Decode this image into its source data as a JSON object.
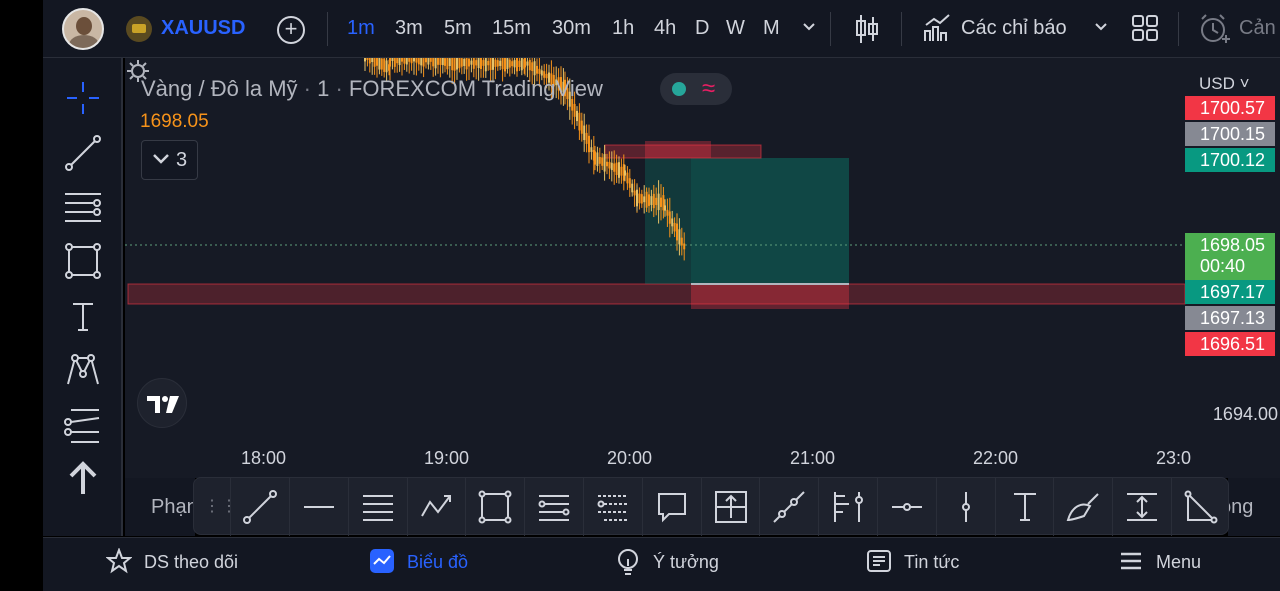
{
  "header": {
    "symbol": "XAUUSD",
    "add_symbol_label": "+",
    "timeframes": [
      "1m",
      "3m",
      "5m",
      "15m",
      "30m",
      "1h",
      "4h",
      "D",
      "W",
      "M"
    ],
    "active_timeframe": "1m",
    "indicators_label": "Các chỉ báo",
    "alert_label": "Cản"
  },
  "chart": {
    "title": {
      "name": "Vàng / Đô la Mỹ",
      "interval": "1",
      "exchange": "FOREXCOM",
      "provider": "TradingView"
    },
    "last_price": "1698.05",
    "collapsed_count": "3",
    "currency": "USD",
    "price_labels": {
      "p1": "1700.57",
      "p2": "1700.15",
      "p3": "1700.12",
      "current": "1698.05",
      "countdown": "00:40",
      "p5": "1697.17",
      "p6": "1697.13",
      "p7": "1696.51",
      "axis_1694": "1694.00"
    },
    "time_labels": [
      "18:00",
      "19:00",
      "20:00",
      "21:00",
      "22:00",
      "23:0"
    ],
    "colors": {
      "bull": "#f7931a",
      "bear": "#e6c36a",
      "red_box": "#f23645",
      "green_box": "#089981",
      "accent": "#2962ff"
    }
  },
  "toolbar_bottom": {
    "left_label": "Phạn",
    "right_label": "ộng",
    "tools": [
      "trend-line-icon",
      "horizontal-line-icon",
      "parallel-channel-icon",
      "zigzag-icon",
      "rectangle-icon",
      "fib-retracement-icon",
      "fib-extension-icon",
      "callout-icon",
      "long-position-icon",
      "ray-icon",
      "pitchfork-icon",
      "horizontal-ray-icon",
      "vertical-line-icon",
      "text-icon",
      "brush-icon",
      "price-range-icon",
      "triangle-icon"
    ]
  },
  "nav": {
    "watchlist": "DS theo dõi",
    "chart": "Biểu đồ",
    "ideas": "Ý tưởng",
    "news": "Tin tức",
    "menu": "Menu"
  }
}
